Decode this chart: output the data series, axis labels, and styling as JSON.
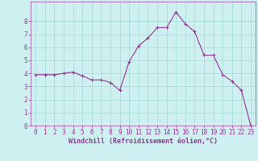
{
  "x": [
    0,
    1,
    2,
    3,
    4,
    5,
    6,
    7,
    8,
    9,
    10,
    11,
    12,
    13,
    14,
    15,
    16,
    17,
    18,
    19,
    20,
    21,
    22,
    23
  ],
  "y": [
    3.9,
    3.9,
    3.9,
    4.0,
    4.1,
    3.8,
    3.5,
    3.5,
    3.3,
    2.7,
    4.9,
    6.1,
    6.7,
    7.5,
    7.5,
    8.7,
    7.8,
    7.2,
    5.4,
    5.4,
    3.9,
    3.4,
    2.7,
    0.0
  ],
  "line_color": "#993399",
  "marker": "+",
  "marker_size": 3,
  "bg_color": "#cff0f0",
  "grid_color": "#a0d8d8",
  "xlabel": "Windchill (Refroidissement éolien,°C)",
  "xlabel_color": "#993399",
  "xlabel_fontsize": 6,
  "tick_color": "#993399",
  "tick_fontsize": 5.5,
  "xlim": [
    -0.5,
    23.5
  ],
  "ylim": [
    0,
    9.5
  ],
  "yticks": [
    0,
    1,
    2,
    3,
    4,
    5,
    6,
    7,
    8
  ],
  "xticks": [
    0,
    1,
    2,
    3,
    4,
    5,
    6,
    7,
    8,
    9,
    10,
    11,
    12,
    13,
    14,
    15,
    16,
    17,
    18,
    19,
    20,
    21,
    22,
    23
  ],
  "line_width": 0.8
}
